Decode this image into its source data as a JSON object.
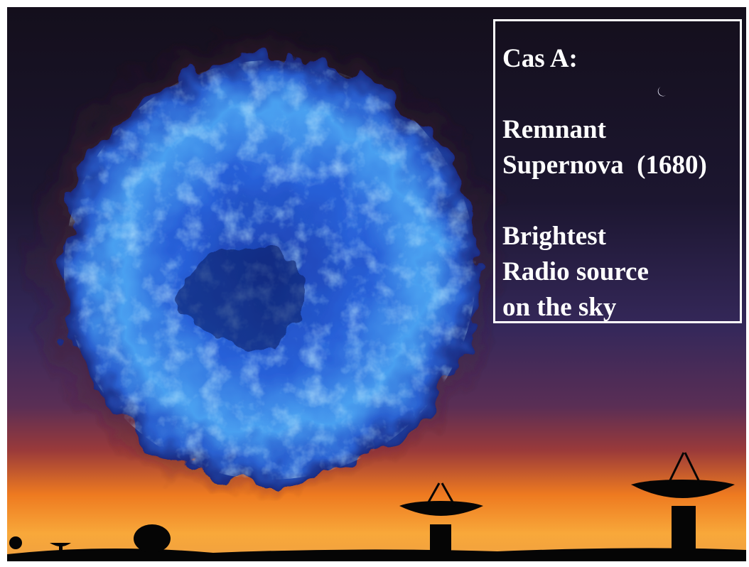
{
  "textbox": {
    "title": "Cas A:",
    "paragraphs": [
      [
        "Remnant",
        "Supernova  (1680)"
      ],
      [
        "Brightest",
        "Radio source",
        "on the sky"
      ]
    ]
  }
}
